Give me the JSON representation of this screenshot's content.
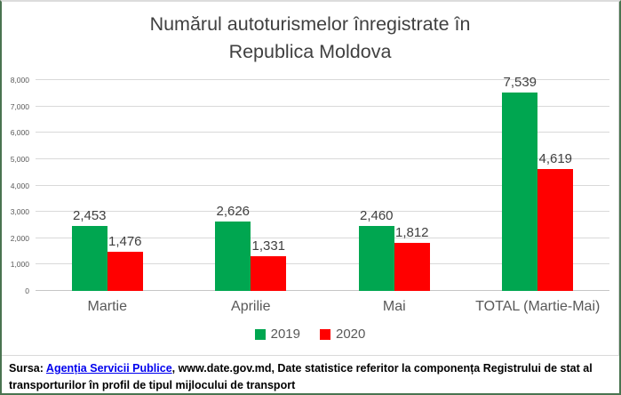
{
  "chart_data": {
    "type": "bar",
    "title": "Numărul autoturismelor înregistrate în Republica Moldova",
    "title_lines": [
      "Numărul autoturismelor înregistrate în",
      "Republica Moldova"
    ],
    "categories": [
      "Martie",
      "Aprilie",
      "Mai",
      "TOTAL (Martie-Mai)"
    ],
    "series": [
      {
        "name": "2019",
        "color": "#00a650",
        "values": [
          2453,
          2626,
          2460,
          7539
        ],
        "labels": [
          "2,453",
          "2,626",
          "2,460",
          "7,539"
        ]
      },
      {
        "name": "2020",
        "color": "#ff0000",
        "values": [
          1476,
          1331,
          1812,
          4619
        ],
        "labels": [
          "1,476",
          "1,331",
          "1,812",
          "4,619"
        ]
      }
    ],
    "y_axis": {
      "min": 0,
      "max": 8000,
      "step": 1000,
      "tick_labels": [
        "0",
        "1,000",
        "2,000",
        "3,000",
        "4,000",
        "5,000",
        "6,000",
        "7,000",
        "8,000"
      ]
    },
    "grid": true,
    "legend_position": "bottom",
    "colors": {
      "grid": "#d9d9d9",
      "title_text": "#404040",
      "axis_text": "#595959"
    }
  },
  "footer": {
    "prefix": "Sursa:  ",
    "link_text": "Agenția Servicii Publice",
    "rest": ", www.date.gov.md, Date statistice referitor la componența Registrului de stat al transporturilor în profil de tipul mijlocului de transport"
  }
}
